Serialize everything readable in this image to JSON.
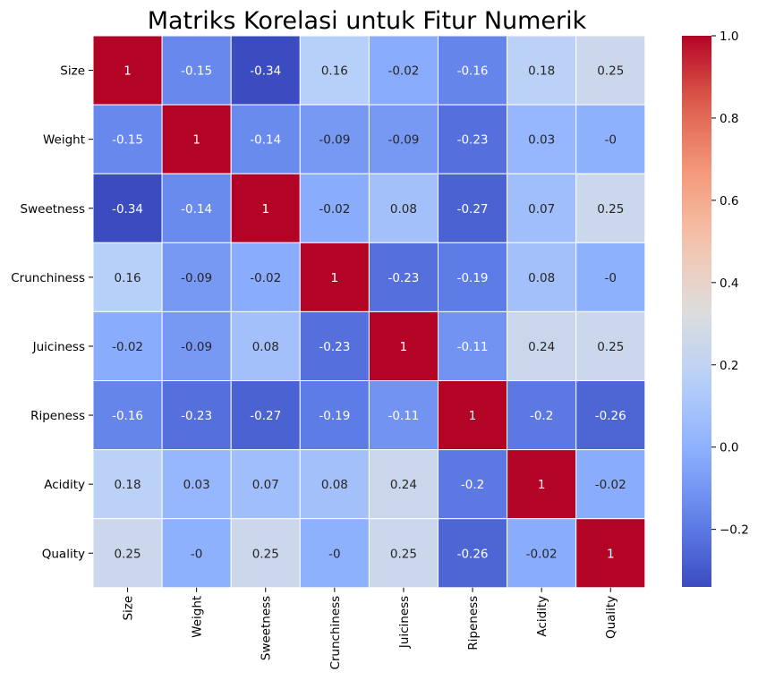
{
  "chart_data": {
    "type": "heatmap",
    "title": "Matriks Korelasi untuk Fitur Numerik",
    "labels": [
      "Size",
      "Weight",
      "Sweetness",
      "Crunchiness",
      "Juiciness",
      "Ripeness",
      "Acidity",
      "Quality"
    ],
    "values": [
      [
        1,
        -0.15,
        -0.34,
        0.16,
        -0.02,
        -0.16,
        0.18,
        0.25
      ],
      [
        -0.15,
        1,
        -0.14,
        -0.09,
        -0.09,
        -0.23,
        0.03,
        0
      ],
      [
        -0.34,
        -0.14,
        1,
        -0.02,
        0.08,
        -0.27,
        0.07,
        0.25
      ],
      [
        0.16,
        -0.09,
        -0.02,
        1,
        -0.23,
        -0.19,
        0.08,
        0
      ],
      [
        -0.02,
        -0.09,
        0.08,
        -0.23,
        1,
        -0.11,
        0.24,
        0.25
      ],
      [
        -0.16,
        -0.23,
        -0.27,
        -0.19,
        -0.11,
        1,
        -0.2,
        -0.26
      ],
      [
        0.18,
        0.03,
        0.07,
        0.08,
        0.24,
        -0.2,
        1,
        -0.02
      ],
      [
        0.25,
        0,
        0.25,
        0,
        0.25,
        -0.26,
        -0.02,
        1
      ]
    ],
    "cell_labels": [
      [
        "1",
        "-0.15",
        "-0.34",
        "0.16",
        "-0.02",
        "-0.16",
        "0.18",
        "0.25"
      ],
      [
        "-0.15",
        "1",
        "-0.14",
        "-0.09",
        "-0.09",
        "-0.23",
        "0.03",
        "-0"
      ],
      [
        "-0.34",
        "-0.14",
        "1",
        "-0.02",
        "0.08",
        "-0.27",
        "0.07",
        "0.25"
      ],
      [
        "0.16",
        "-0.09",
        "-0.02",
        "1",
        "-0.23",
        "-0.19",
        "0.08",
        "-0"
      ],
      [
        "-0.02",
        "-0.09",
        "0.08",
        "-0.23",
        "1",
        "-0.11",
        "0.24",
        "0.25"
      ],
      [
        "-0.16",
        "-0.23",
        "-0.27",
        "-0.19",
        "-0.11",
        "1",
        "-0.2",
        "-0.26"
      ],
      [
        "0.18",
        "0.03",
        "0.07",
        "0.08",
        "0.24",
        "-0.2",
        "1",
        "-0.02"
      ],
      [
        "0.25",
        "-0",
        "0.25",
        "-0",
        "0.25",
        "-0.26",
        "-0.02",
        "1"
      ]
    ],
    "colormap": "coolwarm",
    "vmin": -0.34,
    "vmax": 1.0,
    "colorbar_ticks": [
      1.0,
      0.8,
      0.6,
      0.4,
      0.2,
      0.0,
      -0.2
    ],
    "colorbar_tick_labels": [
      "1.0",
      "0.8",
      "0.6",
      "0.4",
      "0.2",
      "0.0",
      "−0.2"
    ],
    "colors": {
      "cmap_low": "#3b4cc0",
      "cmap_mid": "#dddddd",
      "cmap_high": "#b40426",
      "cell_border": "#ffffff"
    }
  }
}
